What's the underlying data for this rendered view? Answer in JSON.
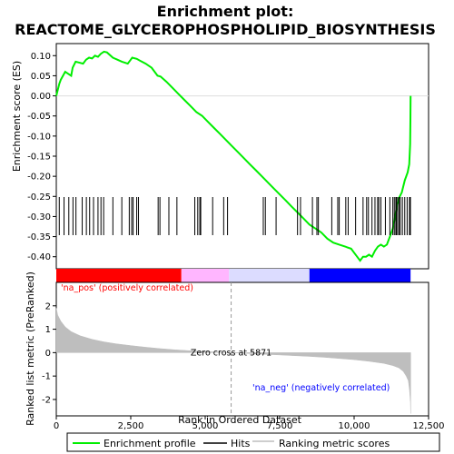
{
  "chart_data": {
    "type": "line",
    "title": "Enrichment plot:",
    "subtitle": "REACTOME_GLYCEROPHOSPHOLIPID_BIOSYNTHESIS",
    "xlabel": "Rank in Ordered Dataset",
    "xlim": [
      0,
      12500
    ],
    "x_ticks": [
      "0",
      "2,500",
      "5,000",
      "7,500",
      "10,000",
      "12,500"
    ],
    "x_tick_values": [
      0,
      2500,
      5000,
      7500,
      10000,
      12500
    ],
    "es_panel": {
      "ylabel": "Enrichment score (ES)",
      "ylim": [
        -0.43,
        0.13
      ],
      "y_ticks": [
        "0.10",
        "0.05",
        "0.00",
        "-0.05",
        "-0.10",
        "-0.15",
        "-0.20",
        "-0.25",
        "-0.30",
        "-0.35",
        "-0.40"
      ],
      "y_tick_values": [
        0.1,
        0.05,
        0.0,
        -0.05,
        -0.1,
        -0.15,
        -0.2,
        -0.25,
        -0.3,
        -0.35,
        -0.4
      ],
      "series": [
        {
          "name": "Enrichment profile",
          "color": "#00ee00",
          "x": [
            0,
            100,
            150,
            300,
            500,
            550,
            650,
            900,
            1000,
            1100,
            1200,
            1300,
            1400,
            1500,
            1600,
            1700,
            1900,
            2050,
            2200,
            2400,
            2500,
            2550,
            2700,
            2800,
            3000,
            3200,
            3400,
            3500,
            3700,
            3900,
            4100,
            4300,
            4500,
            4700,
            4900,
            5100,
            5300,
            5500,
            5700,
            5900,
            6100,
            6300,
            6500,
            6700,
            6900,
            7100,
            7300,
            7500,
            7700,
            7900,
            8100,
            8300,
            8500,
            8700,
            8900,
            9100,
            9300,
            9500,
            9700,
            9900,
            10000,
            10100,
            10200,
            10300,
            10400,
            10500,
            10600,
            10700,
            10800,
            10900,
            11000,
            11100,
            11200,
            11300,
            11350,
            11400,
            11450,
            11500,
            11600,
            11700,
            11800,
            11850,
            11880,
            11890,
            11895
          ],
          "y": [
            0.0,
            0.03,
            0.04,
            0.06,
            0.05,
            0.07,
            0.085,
            0.08,
            0.09,
            0.095,
            0.093,
            0.1,
            0.097,
            0.105,
            0.11,
            0.108,
            0.095,
            0.09,
            0.085,
            0.08,
            0.09,
            0.095,
            0.092,
            0.088,
            0.08,
            0.07,
            0.05,
            0.048,
            0.035,
            0.02,
            0.005,
            -0.01,
            -0.025,
            -0.04,
            -0.05,
            -0.065,
            -0.08,
            -0.095,
            -0.11,
            -0.125,
            -0.14,
            -0.155,
            -0.17,
            -0.185,
            -0.2,
            -0.215,
            -0.23,
            -0.245,
            -0.26,
            -0.275,
            -0.29,
            -0.305,
            -0.32,
            -0.33,
            -0.34,
            -0.355,
            -0.365,
            -0.37,
            -0.375,
            -0.38,
            -0.39,
            -0.4,
            -0.41,
            -0.4,
            -0.4,
            -0.395,
            -0.4,
            -0.385,
            -0.375,
            -0.37,
            -0.375,
            -0.37,
            -0.35,
            -0.33,
            -0.31,
            -0.29,
            -0.27,
            -0.255,
            -0.24,
            -0.21,
            -0.19,
            -0.17,
            -0.12,
            -0.06,
            0.0
          ]
        }
      ]
    },
    "hits": {
      "name": "Hits",
      "color": "#000000",
      "x": [
        100,
        260,
        420,
        560,
        660,
        870,
        1010,
        1120,
        1250,
        1400,
        1500,
        1590,
        1900,
        2200,
        2450,
        2530,
        2580,
        2700,
        2760,
        3420,
        3480,
        3780,
        4050,
        4650,
        4750,
        4820,
        4850,
        5250,
        5620,
        5750,
        6950,
        7020,
        7380,
        8100,
        8200,
        8600,
        8750,
        8800,
        9250,
        9450,
        9500,
        9720,
        9800,
        10050,
        10300,
        10420,
        10480,
        10600,
        10700,
        10790,
        10830,
        10900,
        11050,
        11200,
        11300,
        11350,
        11400,
        11420,
        11460,
        11510,
        11550,
        11620,
        11700,
        11780,
        11860,
        11890
      ]
    },
    "rank_bar": {
      "colors": [
        "#ff0000",
        "#ffb6ff",
        "#dcdcff",
        "#0000ff"
      ]
    },
    "metric_panel": {
      "ylabel": "Ranked list metric (PreRanked)",
      "ylim": [
        -2.7,
        3.0
      ],
      "y_ticks": [
        "2",
        "1",
        "0",
        "-1",
        "-2"
      ],
      "y_tick_values": [
        2,
        1,
        0,
        -1,
        -2
      ],
      "legend_name": "Ranking metric scores",
      "color": "#bebebe",
      "x": [
        0,
        50,
        150,
        300,
        500,
        800,
        1200,
        1600,
        2000,
        2500,
        3000,
        3500,
        4000,
        4500,
        5000,
        5500,
        5871,
        6500,
        7000,
        7500,
        8000,
        8500,
        9000,
        9500,
        10000,
        10500,
        11000,
        11300,
        11500,
        11650,
        11750,
        11820,
        11860,
        11890,
        11900
      ],
      "y": [
        1.9,
        1.6,
        1.35,
        1.1,
        0.9,
        0.72,
        0.57,
        0.46,
        0.38,
        0.3,
        0.23,
        0.17,
        0.12,
        0.08,
        0.05,
        0.02,
        0.0,
        -0.04,
        -0.07,
        -0.1,
        -0.13,
        -0.16,
        -0.2,
        -0.25,
        -0.3,
        -0.37,
        -0.46,
        -0.55,
        -0.65,
        -0.8,
        -1.0,
        -1.2,
        -1.6,
        -2.1,
        -2.6
      ]
    },
    "annotations": {
      "zero_cross": "Zero cross at 5871",
      "zero_cross_x": 5871,
      "pos_label": "'na_pos' (positively correlated)",
      "neg_label": "'na_neg' (negatively correlated)",
      "pos_color": "#ff0000",
      "neg_color": "#0000ff"
    },
    "legend": {
      "placement": "bottom",
      "items": [
        "Enrichment profile",
        "Hits",
        "Ranking metric scores"
      ]
    }
  }
}
